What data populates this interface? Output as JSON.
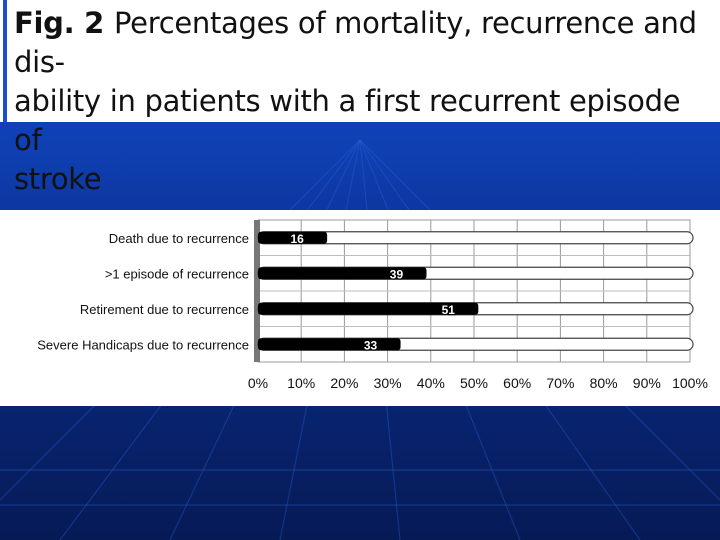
{
  "slide": {
    "title_fig": "Fig. 2",
    "title_line1": "Percentages of mortality, recurrence and dis-",
    "title_line2": "ability in patients with a first recurrent episode of",
    "title_line3": "stroke"
  },
  "colors": {
    "background": "#0a2c86",
    "title_accent": "#1a4fd0",
    "bar_fill": "#000000",
    "bar_track": "#ffffff"
  },
  "chart_data": {
    "type": "bar",
    "orientation": "horizontal",
    "stacked_to_100": true,
    "title": "",
    "xlabel": "",
    "ylabel": "",
    "xlim": [
      0,
      100
    ],
    "grid": true,
    "categories": [
      "Death due to recurrence",
      ">1 episode of recurrence",
      "Retirement due to recurrence",
      "Severe Handicaps due to recurrence"
    ],
    "values": [
      16,
      39,
      51,
      33
    ],
    "value_labels": [
      "16",
      "39",
      "51",
      "33"
    ],
    "x_ticks": [
      "0%",
      "10%",
      "20%",
      "30%",
      "40%",
      "50%",
      "60%",
      "70%",
      "80%",
      "90%",
      "100%"
    ]
  }
}
